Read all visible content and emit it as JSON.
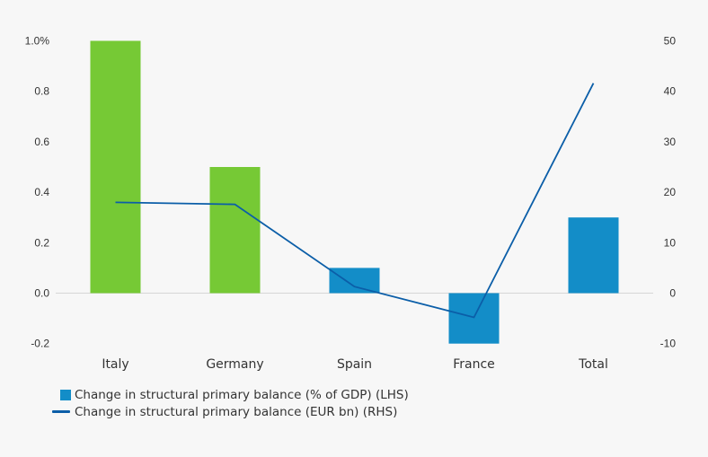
{
  "chart_data": {
    "type": "bar",
    "title": "",
    "xlabel": "",
    "ylabel": "",
    "categories": [
      "Italy",
      "Germany",
      "Spain",
      "France",
      "Total"
    ],
    "series": [
      {
        "name": "Change in structural primary balance (% of GDP) (LHS)",
        "type": "bar",
        "axis": "left",
        "values": [
          1.0,
          0.5,
          0.1,
          -0.2,
          0.3
        ],
        "colors": [
          "#76c935",
          "#76c935",
          "#138dc8",
          "#138dc8",
          "#138dc8"
        ]
      },
      {
        "name": "Change in structural primary balance (EUR bn) (RHS)",
        "type": "line",
        "axis": "right",
        "values": [
          18.0,
          17.6,
          1.3,
          -4.8,
          41.6
        ],
        "color": "#0b5ea8"
      }
    ],
    "left_axis": {
      "ylim": [
        -0.2,
        1.0
      ],
      "ticks": [
        -0.2,
        0.0,
        0.2,
        0.4,
        0.6,
        0.8,
        1.0
      ],
      "tick_labels": [
        "-0.2",
        "0.0",
        "0.2",
        "0.4",
        "0.6",
        "0.8",
        "1.0%"
      ]
    },
    "right_axis": {
      "ylim": [
        -10,
        50
      ],
      "ticks": [
        -10,
        0,
        10,
        20,
        30,
        40,
        50
      ],
      "tick_labels": [
        "-10",
        "0",
        "10",
        "20",
        "30",
        "40",
        "50"
      ]
    },
    "grid": false,
    "legend_position": "bottom-left"
  },
  "legend": {
    "items": [
      {
        "label": "Change in structural primary balance (% of GDP) (LHS)",
        "kind": "box",
        "color": "#138dc8"
      },
      {
        "label": "Change in structural primary balance (EUR bn) (RHS)",
        "kind": "line",
        "color": "#0b5ea8"
      }
    ]
  },
  "colors": {
    "background": "#f7f7f7",
    "green": "#76c935",
    "blue": "#138dc8",
    "line": "#0b5ea8",
    "zero_line": "#d6d6d6"
  }
}
